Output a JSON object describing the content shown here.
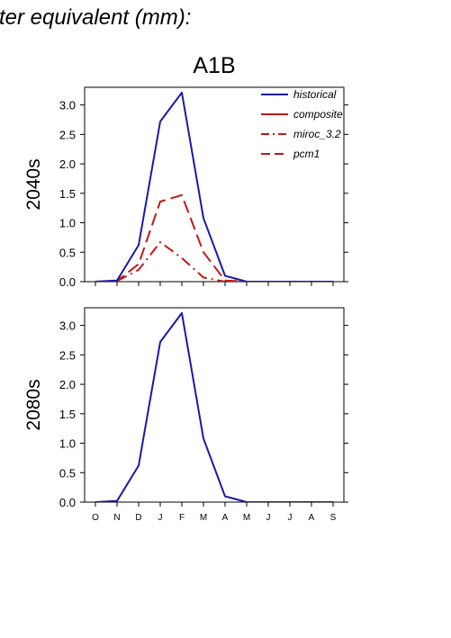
{
  "page": {
    "header_text": "ter equivalent (mm):",
    "scenario_title": "A1B"
  },
  "chart_data": [
    {
      "type": "line",
      "panel": "2040s",
      "ylabel": "2040s",
      "categories": [
        "O",
        "N",
        "D",
        "J",
        "F",
        "M",
        "A",
        "M",
        "J",
        "J",
        "A",
        "S"
      ],
      "ylim": [
        0,
        3.3
      ],
      "yticks": [
        "0.0",
        "0.5",
        "1.0",
        "1.5",
        "2.0",
        "2.5",
        "3.0"
      ],
      "legend_position": "top-right",
      "series": [
        {
          "name": "historical",
          "color": "#1a1aa6",
          "dash": "solid",
          "values": [
            0.0,
            0.02,
            0.62,
            2.72,
            3.21,
            1.08,
            0.1,
            0.0,
            0.0,
            0.0,
            0.0,
            0.0
          ]
        },
        {
          "name": "composite",
          "color": "#c01818",
          "dash": "solid",
          "values": [
            null,
            null,
            null,
            null,
            null,
            null,
            null,
            null,
            null,
            null,
            null,
            null
          ]
        },
        {
          "name": "miroc_3.2",
          "color": "#c01818",
          "dash": "dashdot",
          "values": [
            0.0,
            0.01,
            0.2,
            0.67,
            0.4,
            0.07,
            0.0,
            0.0,
            0.0,
            0.0,
            0.0,
            0.0
          ]
        },
        {
          "name": "pcm1",
          "color": "#c01818",
          "dash": "dashed",
          "values": [
            0.0,
            0.01,
            0.3,
            1.36,
            1.47,
            0.5,
            0.02,
            0.0,
            0.0,
            0.0,
            0.0,
            0.0
          ]
        }
      ]
    },
    {
      "type": "line",
      "panel": "2080s",
      "ylabel": "2080s",
      "categories": [
        "O",
        "N",
        "D",
        "J",
        "F",
        "M",
        "A",
        "M",
        "J",
        "J",
        "A",
        "S"
      ],
      "ylim": [
        0,
        3.3
      ],
      "yticks": [
        "0.0",
        "0.5",
        "1.0",
        "1.5",
        "2.0",
        "2.5",
        "3.0"
      ],
      "series": [
        {
          "name": "historical",
          "color": "#1a1aa6",
          "dash": "solid",
          "values": [
            0.0,
            0.02,
            0.62,
            2.72,
            3.21,
            1.08,
            0.1,
            0.0,
            0.0,
            0.0,
            0.0,
            0.0
          ]
        }
      ]
    }
  ]
}
